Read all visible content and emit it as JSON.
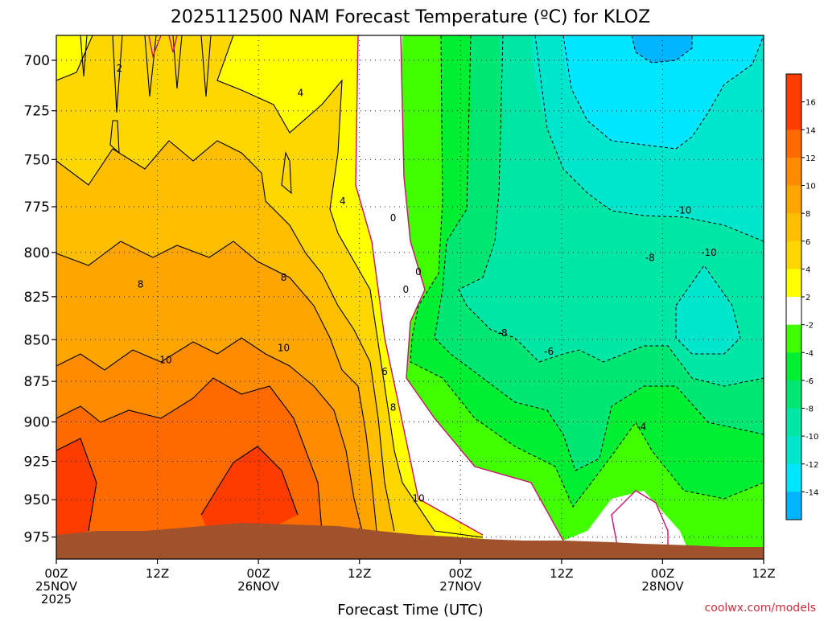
{
  "chart_data": {
    "type": "heatmap",
    "title": "2025112500 NAM Forecast Temperature (ºC) for KLOZ",
    "xlabel": "Forecast Time (UTC)",
    "ylabel": "",
    "credit": "coolwx.com/models",
    "x_ticks": [
      {
        "hour": 0,
        "lines": [
          "00Z",
          "25NOV",
          "2025"
        ]
      },
      {
        "hour": 12,
        "lines": [
          "12Z"
        ]
      },
      {
        "hour": 24,
        "lines": [
          "00Z",
          "26NOV"
        ]
      },
      {
        "hour": 36,
        "lines": [
          "12Z"
        ]
      },
      {
        "hour": 48,
        "lines": [
          "00Z",
          "27NOV"
        ]
      },
      {
        "hour": 60,
        "lines": [
          "12Z"
        ]
      },
      {
        "hour": 72,
        "lines": [
          "00Z",
          "28NOV"
        ]
      },
      {
        "hour": 84,
        "lines": [
          "12Z"
        ]
      }
    ],
    "xlim": [
      0,
      84
    ],
    "y_ticks": [
      700,
      725,
      750,
      775,
      800,
      825,
      850,
      875,
      900,
      925,
      950,
      975
    ],
    "ylim": [
      990,
      688
    ],
    "y_scale": "log-pressure",
    "grid": "dotted",
    "colorbar": {
      "placement": "right",
      "labels": [
        "16",
        "14",
        "12",
        "10",
        "8",
        "6",
        "4",
        "2",
        "-2",
        "-4",
        "-6",
        "-8",
        "-10",
        "-12",
        "-14"
      ],
      "colors": [
        "#ff3c00",
        "#ff6a00",
        "#ff8c00",
        "#ffa500",
        "#ffbf00",
        "#ffd700",
        "#ffff00",
        "#ffffff",
        "#41ff00",
        "#00ef32",
        "#00e673",
        "#00e6a5",
        "#00e6cd",
        "#00e6ff",
        "#00b4ff"
      ]
    },
    "contour_labels": [
      {
        "hour": 7.5,
        "pressure": 704,
        "text": "2"
      },
      {
        "hour": 29,
        "pressure": 716,
        "text": "4"
      },
      {
        "hour": 34,
        "pressure": 772,
        "text": "4"
      },
      {
        "hour": 27,
        "pressure": 814,
        "text": "8"
      },
      {
        "hour": 10,
        "pressure": 818,
        "text": "8"
      },
      {
        "hour": 27,
        "pressure": 855,
        "text": "10"
      },
      {
        "hour": 13,
        "pressure": 862,
        "text": "10"
      },
      {
        "hour": 40,
        "pressure": 781,
        "text": "0"
      },
      {
        "hour": 43,
        "pressure": 811,
        "text": "0"
      },
      {
        "hour": 40,
        "pressure": 891,
        "text": "8"
      },
      {
        "hour": 39,
        "pressure": 869,
        "text": "6"
      },
      {
        "hour": 43,
        "pressure": 949,
        "text": "10"
      },
      {
        "hour": 41.5,
        "pressure": 821,
        "text": "0"
      },
      {
        "hour": 53,
        "pressure": 846,
        "text": "-8"
      },
      {
        "hour": 58.5,
        "pressure": 857,
        "text": "-6"
      },
      {
        "hour": 70.5,
        "pressure": 803,
        "text": "-8"
      },
      {
        "hour": 74.5,
        "pressure": 777,
        "text": "-10"
      },
      {
        "hour": 77.5,
        "pressure": 800,
        "text": "-10"
      },
      {
        "hour": 69.5,
        "pressure": 903,
        "text": "-4"
      }
    ]
  }
}
